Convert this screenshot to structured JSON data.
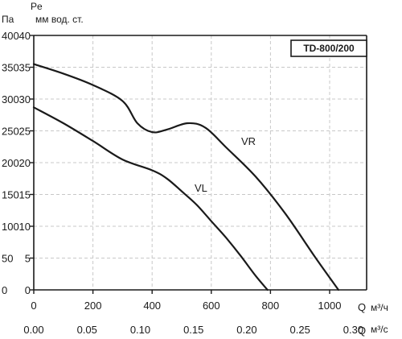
{
  "chart_data": {
    "type": "line",
    "title": "TD-800/200",
    "y_left_label_top": "Pe",
    "y_left_label": "Па",
    "y_right_label": "мм вод. ст.",
    "x_primary_label": "Q",
    "x_primary_unit": "м³/ч",
    "x_secondary_label": "Q",
    "x_secondary_unit": "м³/с",
    "x_primary_ticks": [
      "0",
      "200",
      "400",
      "600",
      "800",
      "1000"
    ],
    "x_secondary_ticks": [
      "0.00",
      "0.05",
      "0.10",
      "0.15",
      "0.20",
      "0.25",
      "0.30"
    ],
    "y_pa_ticks": [
      "0",
      "50",
      "100",
      "150",
      "200",
      "250",
      "300",
      "350",
      "400"
    ],
    "y_mm_ticks": [
      "0",
      "5",
      "10",
      "15",
      "20",
      "25",
      "30",
      "35",
      "40"
    ],
    "xlim": [
      0,
      1125
    ],
    "ylim": [
      0,
      400
    ],
    "grid": true,
    "series": [
      {
        "name": "VR",
        "x": [
          0,
          100,
          200,
          300,
          350,
          400,
          450,
          520,
          580,
          650,
          750,
          850,
          950,
          1030
        ],
        "y": [
          355,
          340,
          322,
          297,
          262,
          248,
          252,
          262,
          255,
          224,
          178,
          120,
          52,
          0
        ]
      },
      {
        "name": "VL",
        "x": [
          0,
          100,
          200,
          300,
          400,
          450,
          500,
          550,
          600,
          650,
          700,
          750,
          790
        ],
        "y": [
          287,
          262,
          234,
          205,
          188,
          175,
          155,
          134,
          108,
          82,
          53,
          22,
          0
        ]
      }
    ]
  }
}
